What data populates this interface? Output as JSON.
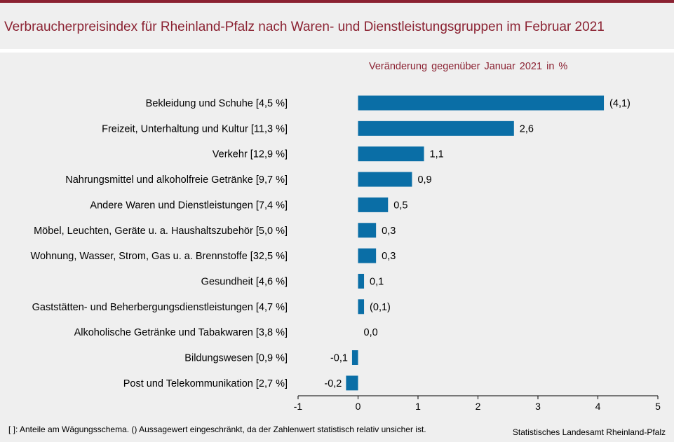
{
  "header": {
    "title": "Verbraucherpreisindex für Rheinland-Pfalz nach Waren- und Dienstleistungsgruppen im Februar 2021"
  },
  "footer": {
    "footnote": "[ ]: Anteile am Wägungsschema. () Aussagewert eingeschränkt, da der Zahlenwert  statistisch relativ unsicher ist.",
    "source": "Statistisches Landesamt Rheinland-Pfalz"
  },
  "chart_data": {
    "type": "bar",
    "orientation": "horizontal",
    "title": "Verbraucherpreisindex für Rheinland-Pfalz nach Waren- und Dienstleistungsgruppen im Februar 2021",
    "subtitle": "Veränderung gegenüber Januar 2021 in %",
    "categories": [
      "Bekleidung und Schuhe [4,5 %]",
      "Freizeit, Unterhaltung und Kultur [11,3 %]",
      "Verkehr [12,9 %]",
      "Nahrungsmittel und alkoholfreie Getränke [9,7 %]",
      "Andere Waren und Dienstleistungen [7,4 %]",
      "Möbel, Leuchten, Geräte u. a. Haushaltszubehör [5,0 %]",
      "Wohnung, Wasser, Strom, Gas u. a. Brennstoffe [32,5 %]",
      "Gesundheit [4,6 %]",
      "Gaststätten- und Beherbergungsdienstleistungen [4,7 %]",
      "Alkoholische Getränke und Tabakwaren [3,8 %]",
      "Bildungswesen [0,9 %]",
      "Post und Telekommunikation [2,7 %]"
    ],
    "values": [
      4.1,
      2.6,
      1.1,
      0.9,
      0.5,
      0.3,
      0.3,
      0.1,
      0.1,
      0.0,
      -0.1,
      -0.2
    ],
    "value_labels": [
      "(4,1)",
      "2,6",
      "1,1",
      "0,9",
      "0,5",
      "0,3",
      "0,3",
      "0,1",
      "(0,1)",
      "0,0",
      "-0,1",
      "-0,2"
    ],
    "xlim": [
      -1,
      5
    ],
    "xticks": [
      -1,
      0,
      1,
      2,
      3,
      4,
      5
    ],
    "xtick_labels": [
      "-1",
      "0",
      "1",
      "2",
      "3",
      "4",
      "5"
    ],
    "xlabel": "",
    "ylabel": "",
    "grid": false,
    "legend": "none",
    "bar_color": "#0a6ea6",
    "accent_color": "#8b2232"
  }
}
